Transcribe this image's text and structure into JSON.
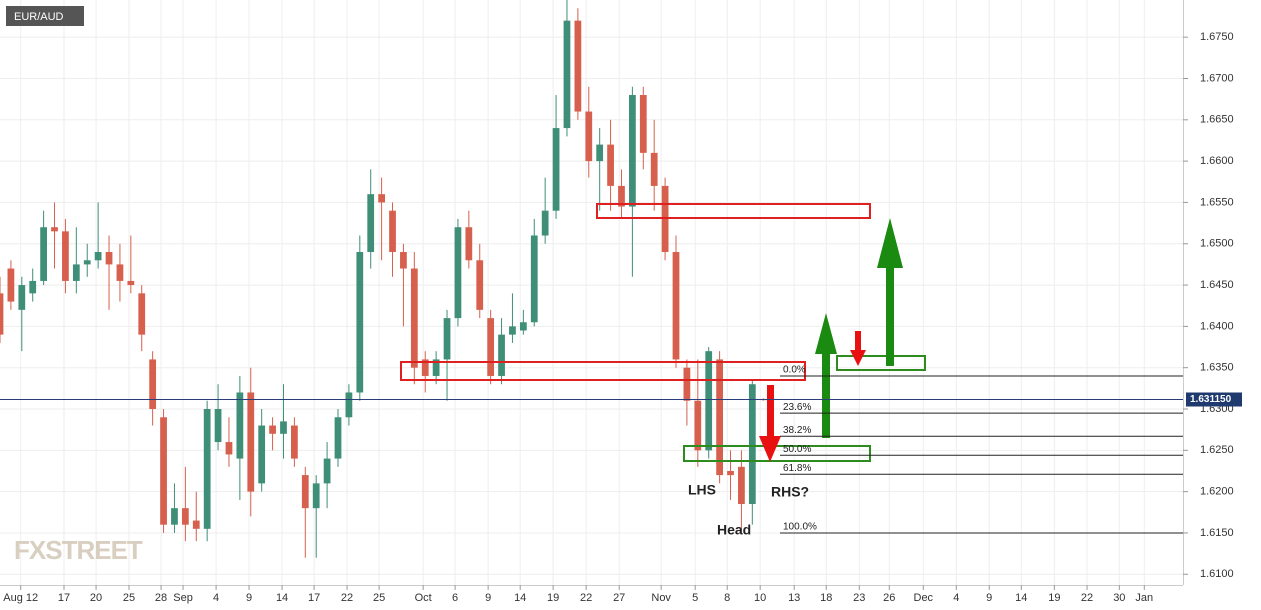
{
  "chart_data": {
    "type": "candlestick",
    "title": "EUR/AUD",
    "watermark": "FXSTREET",
    "up_color": "#3f8e78",
    "down_color": "#d6604d",
    "grid": true,
    "ylim": [
      1.6087,
      1.6795
    ],
    "yticks": [
      {
        "value": 1.61,
        "label": "1.6100"
      },
      {
        "value": 1.615,
        "label": "1.6150"
      },
      {
        "value": 1.62,
        "label": "1.6200"
      },
      {
        "value": 1.625,
        "label": "1.6250"
      },
      {
        "value": 1.63,
        "label": "1.6300"
      },
      {
        "value": 1.635,
        "label": "1.6350"
      },
      {
        "value": 1.64,
        "label": "1.6400"
      },
      {
        "value": 1.645,
        "label": "1.6450"
      },
      {
        "value": 1.65,
        "label": "1.6500"
      },
      {
        "value": 1.655,
        "label": "1.6550"
      },
      {
        "value": 1.66,
        "label": "1.6600"
      },
      {
        "value": 1.665,
        "label": "1.6650"
      },
      {
        "value": 1.67,
        "label": "1.6700"
      },
      {
        "value": 1.675,
        "label": "1.6750"
      }
    ],
    "xlim": [
      0,
      108.5
    ],
    "xticks": [
      {
        "value": 1.9,
        "label": "Aug 12"
      },
      {
        "value": 5.87,
        "label": "17"
      },
      {
        "value": 8.81,
        "label": "20"
      },
      {
        "value": 11.83,
        "label": "25"
      },
      {
        "value": 14.77,
        "label": "28"
      },
      {
        "value": 16.79,
        "label": "Sep"
      },
      {
        "value": 19.82,
        "label": "4"
      },
      {
        "value": 22.84,
        "label": "9"
      },
      {
        "value": 25.87,
        "label": "14"
      },
      {
        "value": 28.81,
        "label": "17"
      },
      {
        "value": 31.83,
        "label": "22"
      },
      {
        "value": 34.77,
        "label": "25"
      },
      {
        "value": 38.81,
        "label": "Oct"
      },
      {
        "value": 41.74,
        "label": "6"
      },
      {
        "value": 44.77,
        "label": "9"
      },
      {
        "value": 47.71,
        "label": "14"
      },
      {
        "value": 50.73,
        "label": "19"
      },
      {
        "value": 53.76,
        "label": "22"
      },
      {
        "value": 56.79,
        "label": "27"
      },
      {
        "value": 60.64,
        "label": "Nov"
      },
      {
        "value": 63.76,
        "label": "5"
      },
      {
        "value": 66.7,
        "label": "8"
      },
      {
        "value": 69.72,
        "label": "10"
      },
      {
        "value": 72.84,
        "label": "13"
      },
      {
        "value": 75.78,
        "label": "18"
      },
      {
        "value": 78.81,
        "label": "23"
      },
      {
        "value": 81.56,
        "label": "26"
      },
      {
        "value": 84.68,
        "label": "Dec"
      },
      {
        "value": 87.71,
        "label": "4"
      },
      {
        "value": 90.73,
        "label": "9"
      },
      {
        "value": 93.67,
        "label": "14"
      },
      {
        "value": 96.7,
        "label": "19"
      },
      {
        "value": 99.7,
        "label": "22"
      },
      {
        "value": 102.66,
        "label": "30"
      },
      {
        "value": 104.95,
        "label": "Jan"
      }
    ],
    "open": [
      1.644,
      1.647,
      1.642,
      1.644,
      1.6455,
      1.652,
      1.6515,
      1.6455,
      1.6475,
      1.648,
      1.649,
      1.6475,
      1.6455,
      1.644,
      1.636,
      1.629,
      1.616,
      1.618,
      1.6165,
      1.6155,
      1.626,
      1.626,
      1.624,
      1.632,
      1.621,
      1.628,
      1.627,
      1.628,
      1.622,
      1.618,
      1.621,
      1.624,
      1.629,
      1.632,
      1.649,
      1.656,
      1.654,
      1.649,
      1.647,
      1.636,
      1.634,
      1.636,
      1.641,
      1.652,
      1.648,
      1.641,
      1.634,
      1.639,
      1.6395,
      1.6405,
      1.651,
      1.654,
      1.664,
      1.677,
      1.666,
      1.66,
      1.662,
      1.657,
      1.6545,
      1.668,
      1.661,
      1.657,
      1.649,
      1.635,
      1.631,
      1.625,
      1.636,
      1.6225,
      1.623,
      1.6185,
      1.6312
    ],
    "high": [
      1.646,
      1.648,
      1.646,
      1.647,
      1.654,
      1.655,
      1.653,
      1.652,
      1.65,
      1.655,
      1.651,
      1.65,
      1.651,
      1.645,
      1.637,
      1.63,
      1.621,
      1.623,
      1.62,
      1.631,
      1.633,
      1.629,
      1.634,
      1.635,
      1.63,
      1.629,
      1.633,
      1.629,
      1.623,
      1.622,
      1.626,
      1.63,
      1.633,
      1.651,
      1.659,
      1.658,
      1.655,
      1.65,
      1.649,
      1.637,
      1.637,
      1.642,
      1.653,
      1.654,
      1.65,
      1.642,
      1.641,
      1.644,
      1.642,
      1.653,
      1.658,
      1.668,
      1.6795,
      1.6785,
      1.669,
      1.664,
      1.665,
      1.659,
      1.669,
      1.669,
      1.665,
      1.658,
      1.651,
      1.636,
      1.636,
      1.6375,
      1.637,
      1.625,
      1.625,
      1.6335,
      1.6313
    ],
    "low": [
      1.638,
      1.642,
      1.637,
      1.643,
      1.645,
      1.647,
      1.644,
      1.644,
      1.646,
      1.647,
      1.642,
      1.643,
      1.644,
      1.637,
      1.628,
      1.615,
      1.615,
      1.614,
      1.614,
      1.614,
      1.625,
      1.623,
      1.619,
      1.617,
      1.62,
      1.625,
      1.624,
      1.623,
      1.612,
      1.612,
      1.618,
      1.623,
      1.628,
      1.631,
      1.647,
      1.648,
      1.646,
      1.64,
      1.633,
      1.632,
      1.633,
      1.631,
      1.64,
      1.647,
      1.641,
      1.633,
      1.633,
      1.638,
      1.639,
      1.64,
      1.65,
      1.653,
      1.663,
      1.665,
      1.658,
      1.654,
      1.654,
      1.653,
      1.646,
      1.659,
      1.654,
      1.648,
      1.635,
      1.628,
      1.623,
      1.624,
      1.621,
      1.619,
      1.615,
      1.616,
      1.631
    ],
    "close": [
      1.639,
      1.643,
      1.645,
      1.6455,
      1.652,
      1.6515,
      1.6455,
      1.6475,
      1.648,
      1.649,
      1.6475,
      1.6455,
      1.645,
      1.639,
      1.63,
      1.616,
      1.618,
      1.616,
      1.6155,
      1.63,
      1.63,
      1.6245,
      1.632,
      1.62,
      1.628,
      1.627,
      1.6285,
      1.624,
      1.618,
      1.621,
      1.624,
      1.629,
      1.632,
      1.649,
      1.656,
      1.655,
      1.649,
      1.647,
      1.635,
      1.634,
      1.636,
      1.641,
      1.652,
      1.648,
      1.642,
      1.634,
      1.639,
      1.64,
      1.6405,
      1.651,
      1.654,
      1.664,
      1.677,
      1.666,
      1.66,
      1.662,
      1.657,
      1.6545,
      1.668,
      1.661,
      1.657,
      1.649,
      1.636,
      1.631,
      1.625,
      1.637,
      1.622,
      1.622,
      1.6185,
      1.633,
      1.6311
    ],
    "last_price": {
      "value": 1.63115,
      "label": "1.631150"
    },
    "fib_levels": [
      {
        "value": 1.634,
        "label": "0.0%"
      },
      {
        "value": 1.6295,
        "label": "23.6%"
      },
      {
        "value": 1.6267,
        "label": "38.2%"
      },
      {
        "value": 1.6244,
        "label": "50.0%"
      },
      {
        "value": 1.6221,
        "label": "61.8%"
      },
      {
        "value": 1.615,
        "label": "100.0%"
      }
    ],
    "annotations": [
      "LHS",
      "Head",
      "RHS?"
    ]
  }
}
